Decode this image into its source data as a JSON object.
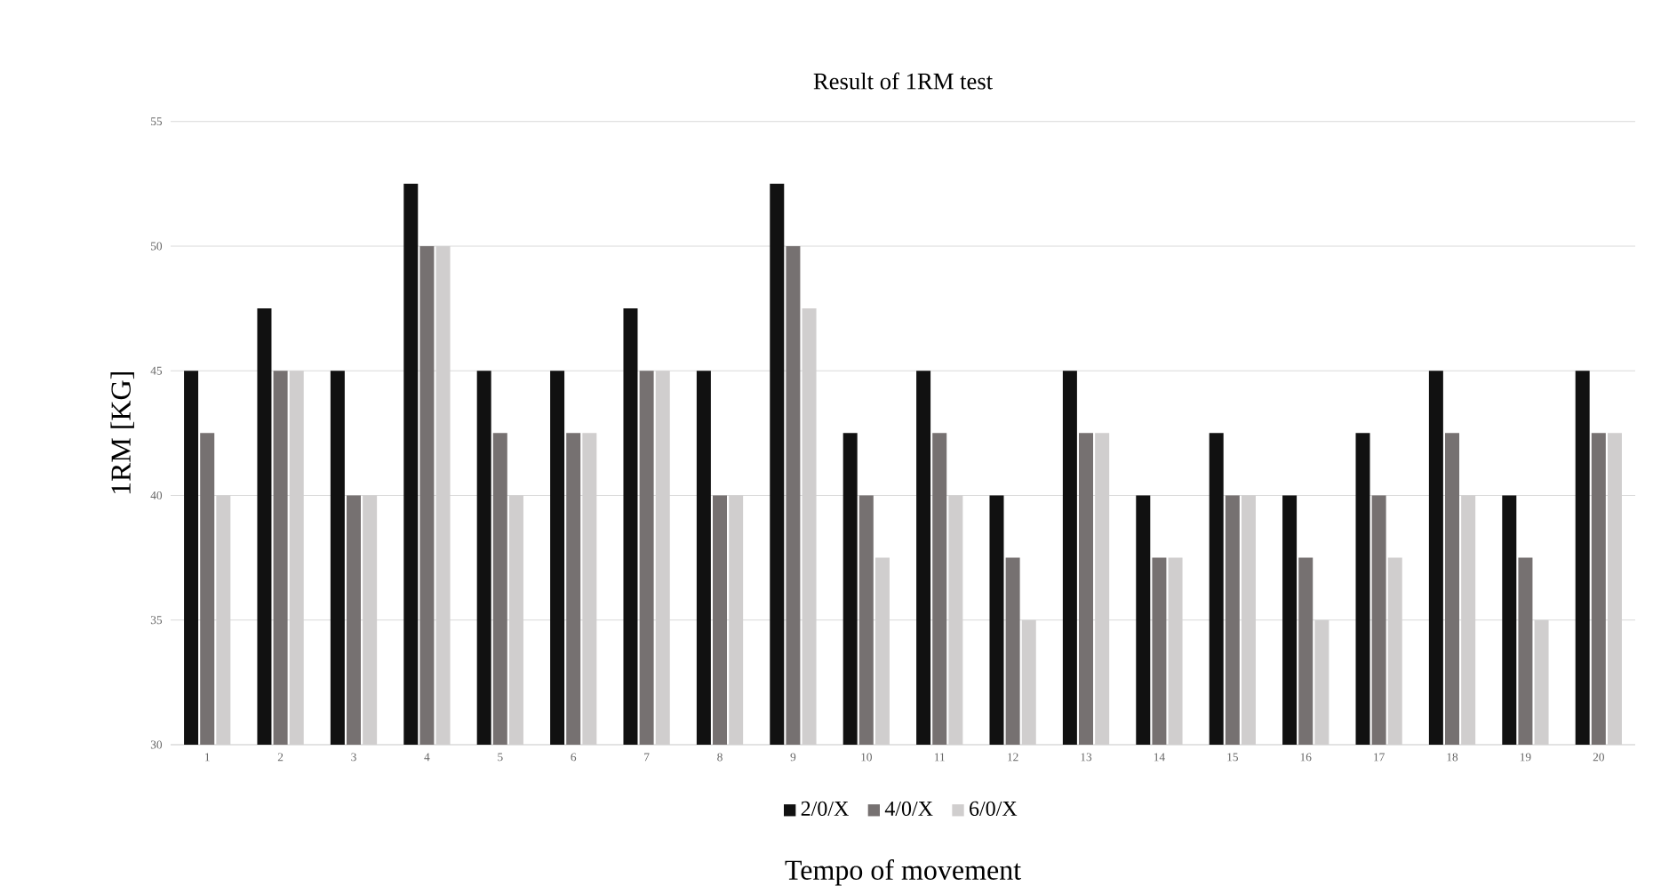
{
  "chart_data": {
    "type": "bar",
    "title": "Result of 1RM test",
    "xlabel": "Tempo of movement",
    "ylabel": "1RM [KG]",
    "categories": [
      "1",
      "2",
      "3",
      "4",
      "5",
      "6",
      "7",
      "8",
      "9",
      "10",
      "11",
      "12",
      "13",
      "14",
      "15",
      "16",
      "17",
      "18",
      "19",
      "20"
    ],
    "series": [
      {
        "name": "2/0/X",
        "color": "#111111",
        "values": [
          45,
          47.5,
          45,
          52.5,
          45,
          45,
          47.5,
          45,
          52.5,
          42.5,
          45,
          40,
          45,
          40,
          42.5,
          40,
          42.5,
          45,
          40,
          45
        ]
      },
      {
        "name": "4/0/X",
        "color": "#767171",
        "values": [
          42.5,
          45,
          40,
          50,
          42.5,
          42.5,
          45,
          40,
          50,
          40,
          42.5,
          37.5,
          42.5,
          37.5,
          40,
          37.5,
          40,
          42.5,
          37.5,
          42.5
        ]
      },
      {
        "name": "6/0/X",
        "color": "#d0cece",
        "values": [
          40,
          45,
          40,
          50,
          40,
          42.5,
          45,
          40,
          47.5,
          37.5,
          40,
          35,
          42.5,
          37.5,
          40,
          35,
          37.5,
          40,
          35,
          42.5
        ]
      }
    ],
    "ylim": [
      30,
      55
    ],
    "yticks": [
      30,
      35,
      40,
      45,
      50,
      55
    ],
    "grid": "y",
    "legend": "bottom"
  }
}
